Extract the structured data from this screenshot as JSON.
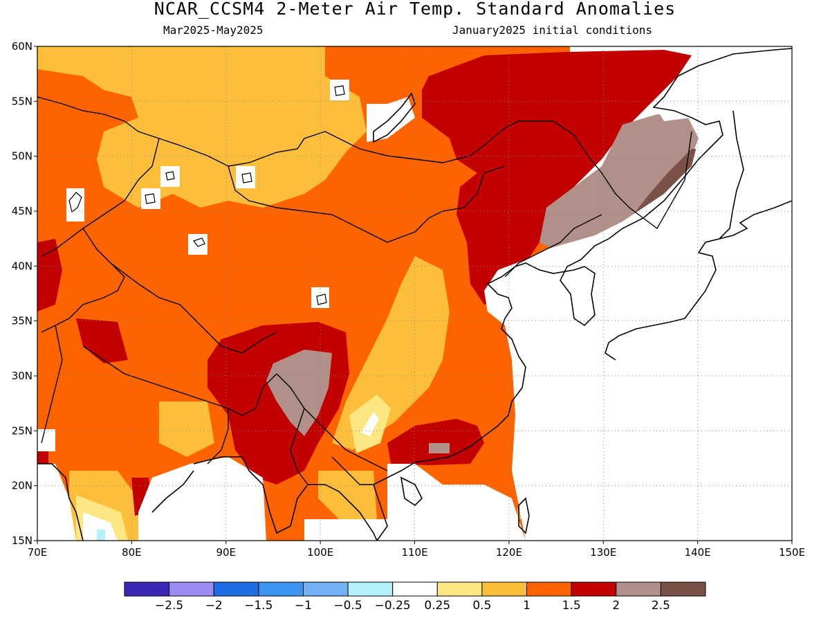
{
  "header": {
    "title": "NCAR_CCSM4 2-Meter Air Temp. Standard Anomalies",
    "period": "Mar2025-May2025",
    "init": "January2025 initial conditions"
  },
  "map": {
    "lon_range": [
      70,
      150
    ],
    "lat_range": [
      15,
      60
    ],
    "lon_labels": [
      "70E",
      "80E",
      "90E",
      "100E",
      "110E",
      "120E",
      "130E",
      "140E",
      "150E"
    ],
    "lat_labels": [
      "15N",
      "20N",
      "25N",
      "30N",
      "35N",
      "40N",
      "45N",
      "50N",
      "55N",
      "60N"
    ],
    "grid": true
  },
  "colorbar": {
    "colors": [
      "#3a28b4",
      "#9a8cf0",
      "#1f6de4",
      "#3c96f0",
      "#72b2f4",
      "#b4f0fa",
      "#ffffff",
      "#fee682",
      "#fdbe3c",
      "#fd6400",
      "#c30000",
      "#b09088",
      "#7b5046"
    ],
    "labels": [
      "-2.5",
      "-2",
      "-1.5",
      "-1",
      "-0.5",
      "-0.25",
      "0.25",
      "0.5",
      "1",
      "1.5",
      "2",
      "2.5"
    ]
  }
}
